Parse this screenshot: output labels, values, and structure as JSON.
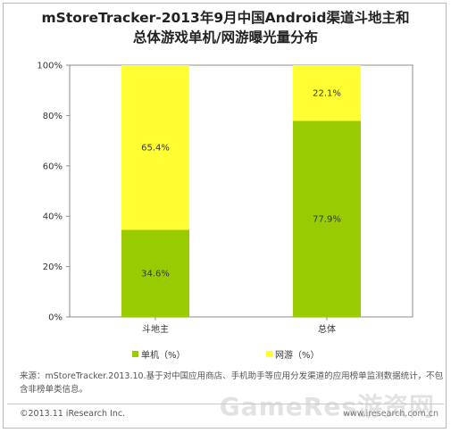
{
  "title_line1": "mStoreTracker-2013年9月中国Android渠道斗地主和",
  "title_line2": "总体游戏单机/网游曝光量分布",
  "chart_data": {
    "type": "bar",
    "stacked": true,
    "categories": [
      "斗地主",
      "总体"
    ],
    "series": [
      {
        "name": "单机（%）",
        "values": [
          34.6,
          77.9
        ],
        "labels": [
          "34.6%",
          "77.9%"
        ],
        "color": "#99cc00"
      },
      {
        "name": "网游（%）",
        "values": [
          65.4,
          22.1
        ],
        "labels": [
          "65.4%",
          "22.1%"
        ],
        "color": "#ffff33"
      }
    ],
    "yticks": [
      "0%",
      "20%",
      "40%",
      "60%",
      "80%",
      "100%"
    ],
    "ylim": [
      0,
      100
    ],
    "grid": false,
    "legend": "bottom"
  },
  "source_text": "来源：mStoreTracker.2013.10.基于对中国应用商店、手机助手等应用分发渠道的应用榜单监测数据统计，不包含非榜单类信息。",
  "footer_left": "©2013.11 iResearch Inc.",
  "footer_right": "www.iresearch.com.cn",
  "watermark": "GameRes游资网"
}
